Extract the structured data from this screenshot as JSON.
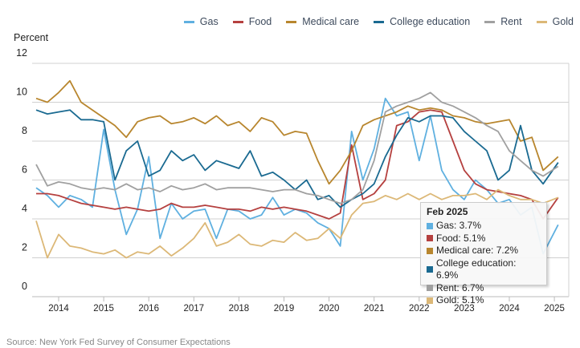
{
  "chart_data": {
    "type": "line",
    "title": "",
    "ylabel": "Percent",
    "xlabel": "",
    "ylim": [
      0,
      12
    ],
    "yticks": [
      0,
      2,
      4,
      6,
      8,
      10,
      12
    ],
    "xticks": [
      "2014",
      "2015",
      "2016",
      "2017",
      "2018",
      "2019",
      "2020",
      "2021",
      "2022",
      "2023",
      "2024",
      "2025"
    ],
    "grid": true,
    "legend_position": "top-right",
    "x": [
      "2013-07",
      "2013-10",
      "2014-01",
      "2014-04",
      "2014-07",
      "2014-10",
      "2015-01",
      "2015-04",
      "2015-07",
      "2015-10",
      "2016-01",
      "2016-04",
      "2016-07",
      "2016-10",
      "2017-01",
      "2017-04",
      "2017-07",
      "2017-10",
      "2018-01",
      "2018-04",
      "2018-07",
      "2018-10",
      "2019-01",
      "2019-04",
      "2019-07",
      "2019-10",
      "2020-01",
      "2020-04",
      "2020-07",
      "2020-10",
      "2021-01",
      "2021-04",
      "2021-07",
      "2021-10",
      "2022-01",
      "2022-04",
      "2022-07",
      "2022-10",
      "2023-01",
      "2023-04",
      "2023-07",
      "2023-10",
      "2024-01",
      "2024-04",
      "2024-07",
      "2024-10",
      "2025-02"
    ],
    "series": [
      {
        "name": "Gas",
        "color": "#5fb0e0",
        "values": [
          5.6,
          5.2,
          4.6,
          5.2,
          5.0,
          4.6,
          8.6,
          5.5,
          3.2,
          4.5,
          7.2,
          3.0,
          4.8,
          4.0,
          4.4,
          4.5,
          3.0,
          4.5,
          4.4,
          4.0,
          4.2,
          5.1,
          4.2,
          4.5,
          4.3,
          3.8,
          3.5,
          2.6,
          8.5,
          6.0,
          7.6,
          10.2,
          9.3,
          9.5,
          7.0,
          9.3,
          6.5,
          5.5,
          5.0,
          6.0,
          5.5,
          4.8,
          5.0,
          4.2,
          4.6,
          2.2,
          3.7
        ]
      },
      {
        "name": "Food",
        "color": "#b5403f",
        "values": [
          5.3,
          5.3,
          5.2,
          5.0,
          4.8,
          4.7,
          4.6,
          4.5,
          4.6,
          4.5,
          4.4,
          4.5,
          4.8,
          4.6,
          4.6,
          4.7,
          4.6,
          4.5,
          4.5,
          4.4,
          4.6,
          4.5,
          4.6,
          4.5,
          4.4,
          4.2,
          4.0,
          4.3,
          7.8,
          5.0,
          5.3,
          6.0,
          8.8,
          9.0,
          9.5,
          9.6,
          9.5,
          8.0,
          6.5,
          5.8,
          5.5,
          5.4,
          5.3,
          5.2,
          5.0,
          4.0,
          5.1
        ]
      },
      {
        "name": "Medical care",
        "color": "#b8862e",
        "values": [
          10.2,
          10.0,
          10.5,
          11.1,
          10.0,
          9.6,
          9.2,
          8.8,
          8.2,
          9.0,
          9.2,
          9.3,
          8.9,
          9.0,
          9.2,
          8.9,
          9.3,
          8.8,
          9.0,
          8.5,
          9.2,
          9.0,
          8.3,
          8.5,
          8.4,
          7.0,
          5.8,
          6.5,
          7.5,
          8.8,
          9.1,
          9.3,
          9.5,
          9.8,
          9.6,
          9.7,
          9.6,
          9.3,
          9.2,
          9.0,
          8.9,
          9.0,
          9.1,
          8.0,
          8.2,
          6.5,
          7.2
        ]
      },
      {
        "name": "College education",
        "color": "#1a6a91",
        "values": [
          9.6,
          9.4,
          9.5,
          9.6,
          9.1,
          9.1,
          9.0,
          6.0,
          7.5,
          8.0,
          6.2,
          6.5,
          7.5,
          7.0,
          7.3,
          6.5,
          7.0,
          6.8,
          6.6,
          7.5,
          6.2,
          6.4,
          6.0,
          5.5,
          6.0,
          5.0,
          5.2,
          4.6,
          5.0,
          5.3,
          5.8,
          7.2,
          8.3,
          9.2,
          9.0,
          9.3,
          9.3,
          9.2,
          8.5,
          8.0,
          7.5,
          6.0,
          6.5,
          8.8,
          6.5,
          5.8,
          6.9
        ]
      },
      {
        "name": "Rent",
        "color": "#a0a0a0",
        "values": [
          6.8,
          5.7,
          5.9,
          5.8,
          5.6,
          5.5,
          5.6,
          5.5,
          5.8,
          5.5,
          5.6,
          5.4,
          5.7,
          5.5,
          5.6,
          5.8,
          5.5,
          5.6,
          5.6,
          5.6,
          5.5,
          5.4,
          5.5,
          5.5,
          5.3,
          5.2,
          5.0,
          4.8,
          5.0,
          5.5,
          7.0,
          9.5,
          9.8,
          10.0,
          10.2,
          10.5,
          10.0,
          9.8,
          9.5,
          9.2,
          8.8,
          8.5,
          7.5,
          7.0,
          6.5,
          6.2,
          6.7
        ]
      },
      {
        "name": "Gold",
        "color": "#dcb877",
        "values": [
          3.9,
          2.0,
          3.2,
          2.6,
          2.5,
          2.3,
          2.2,
          2.4,
          2.0,
          2.3,
          2.2,
          2.6,
          2.1,
          2.5,
          3.0,
          3.8,
          2.6,
          2.8,
          3.2,
          2.7,
          2.6,
          2.9,
          2.8,
          3.3,
          2.9,
          3.0,
          3.5,
          3.0,
          4.2,
          4.8,
          4.9,
          5.2,
          5.0,
          5.3,
          5.0,
          5.3,
          5.0,
          5.2,
          5.2,
          5.3,
          5.0,
          5.5,
          5.2,
          5.0,
          5.0,
          4.8,
          5.1
        ]
      }
    ],
    "tooltip": {
      "title": "Feb 2025",
      "rows": [
        "Gas: 3.7%",
        "Food: 5.1%",
        "Medical care: 7.2%",
        "College education: 6.9%",
        "Rent: 6.7%",
        "Gold: 5.1%"
      ]
    },
    "source": "Source: New York Fed Survey of Consumer Expectations"
  }
}
